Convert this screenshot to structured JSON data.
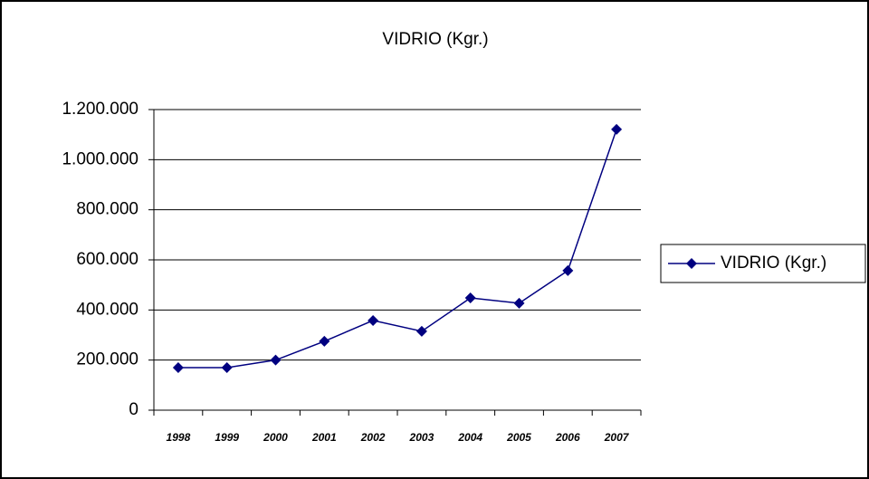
{
  "chart_data": {
    "type": "line",
    "title": "VIDRIO (Kgr.)",
    "categories": [
      "1998",
      "1999",
      "2000",
      "2001",
      "2002",
      "2003",
      "2004",
      "2005",
      "2006",
      "2007"
    ],
    "series": [
      {
        "name": "VIDRIO (Kgr.)",
        "color": "#000080",
        "values": [
          170000,
          170000,
          200000,
          275000,
          358000,
          315000,
          448000,
          427000,
          557000,
          1121000
        ]
      }
    ],
    "ylim": [
      0,
      1200000
    ],
    "yticks": [
      0,
      {
        "value": 200000,
        "label": "200.000"
      },
      {
        "value": 400000,
        "label": "400.000"
      },
      {
        "value": 600000,
        "label": "600.000"
      },
      {
        "value": 800000,
        "label": "800.000"
      },
      {
        "value": 1000000,
        "label": "1.000.000"
      },
      {
        "value": 1200000,
        "label": "1.200.000"
      }
    ],
    "grid": true,
    "legend": "right"
  }
}
